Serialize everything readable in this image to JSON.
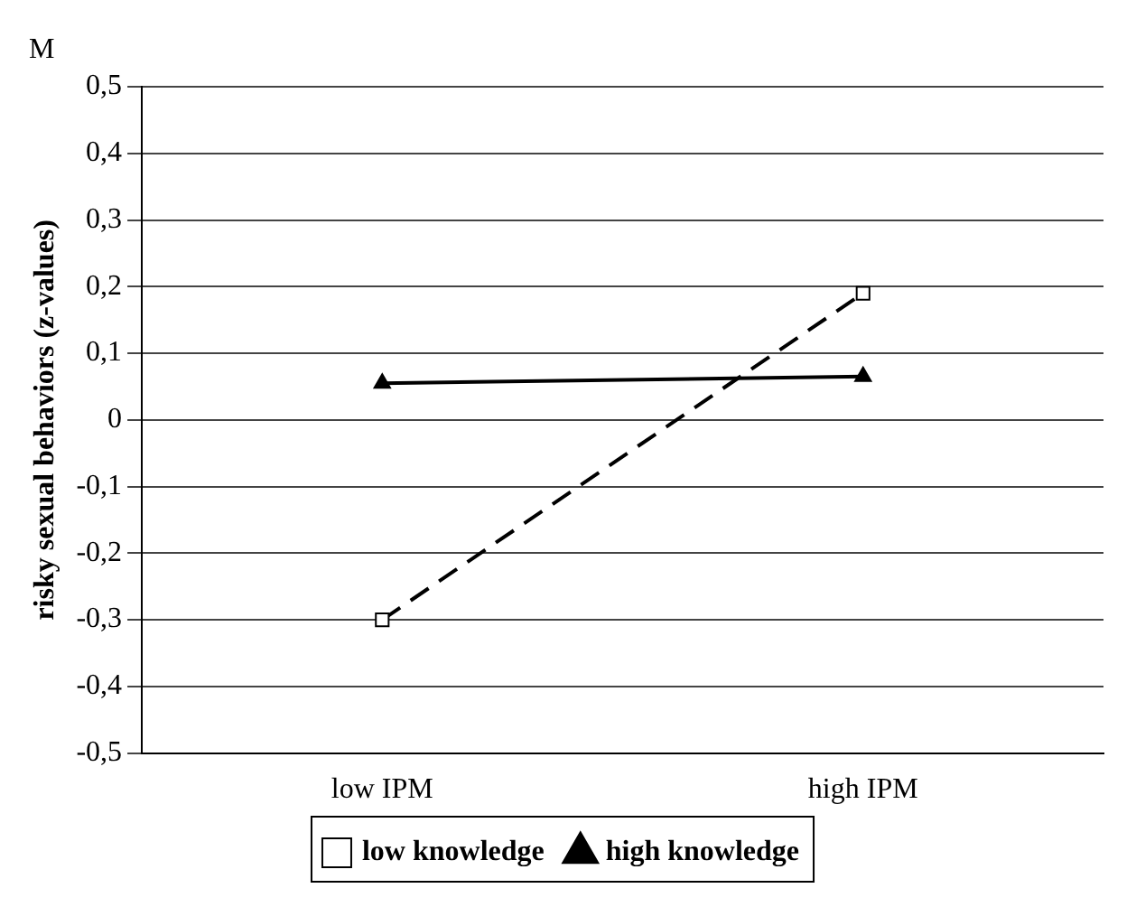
{
  "chart_data": {
    "type": "line",
    "ylabel": "risky sexual behaviors (z-values)",
    "annotations": [
      "M"
    ],
    "categories": [
      "low IPM",
      "high IPM"
    ],
    "series": [
      {
        "name": "low knowledge",
        "color": "#000000",
        "values": [
          -0.3,
          0.19
        ],
        "marker": "square",
        "line_style": "dashed"
      },
      {
        "name": "high knowledge",
        "color": "#000000",
        "values": [
          0.055,
          0.065
        ],
        "marker": "triangle",
        "line_style": "solid"
      }
    ],
    "ylim": [
      -0.5,
      0.5
    ],
    "yticks": [
      {
        "value": -0.5,
        "label": "-0,5"
      },
      {
        "value": -0.4,
        "label": "-0,4"
      },
      {
        "value": -0.3,
        "label": "-0,3"
      },
      {
        "value": -0.2,
        "label": "-0,2"
      },
      {
        "value": -0.1,
        "label": "-0,1"
      },
      {
        "value": 0,
        "label": "0"
      },
      {
        "value": 0.1,
        "label": "0,1"
      },
      {
        "value": 0.2,
        "label": "0,2"
      },
      {
        "value": 0.3,
        "label": "0,3"
      },
      {
        "value": 0.4,
        "label": "0,4"
      },
      {
        "value": 0.5,
        "label": "0,5"
      }
    ],
    "grid": "y",
    "legend": "bottom"
  }
}
